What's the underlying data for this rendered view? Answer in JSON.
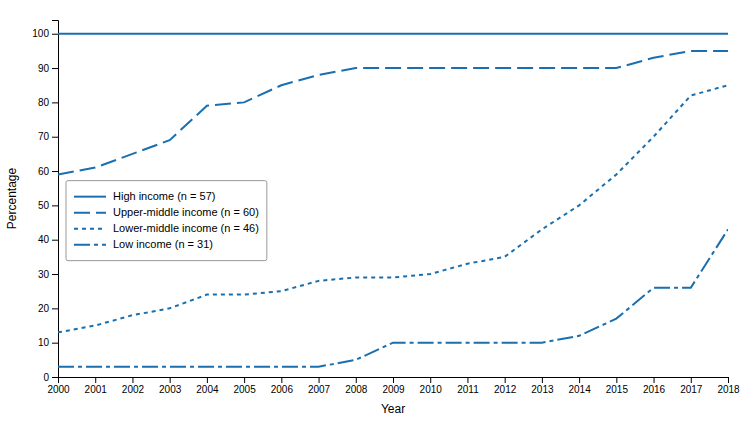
{
  "chart_data": {
    "type": "line",
    "xlabel": "Year",
    "ylabel": "Percentage",
    "x": [
      2000,
      2001,
      2002,
      2003,
      2004,
      2005,
      2006,
      2007,
      2008,
      2009,
      2010,
      2011,
      2012,
      2013,
      2014,
      2015,
      2016,
      2017,
      2018
    ],
    "series": [
      {
        "name": "High income (n = 57)",
        "color": "#1a6faf",
        "line_style": "solid",
        "values": [
          100,
          100,
          100,
          100,
          100,
          100,
          100,
          100,
          100,
          100,
          100,
          100,
          100,
          100,
          100,
          100,
          100,
          100,
          100
        ]
      },
      {
        "name": "Upper-middle income (n = 60)",
        "color": "#1a6faf",
        "line_style": "dashed",
        "values": [
          59,
          61,
          65,
          69,
          79,
          80,
          85,
          88,
          90,
          90,
          90,
          90,
          90,
          90,
          90,
          90,
          93,
          95,
          95
        ]
      },
      {
        "name": "Lower-middle income (n = 46)",
        "color": "#1a6faf",
        "line_style": "dotted",
        "values": [
          13,
          15,
          18,
          20,
          24,
          24,
          25,
          28,
          29,
          29,
          30,
          33,
          35,
          43,
          50,
          59,
          70,
          82,
          85
        ]
      },
      {
        "name": "Low income (n = 31)",
        "color": "#1a6faf",
        "line_style": "dashdot",
        "values": [
          3,
          3,
          3,
          3,
          3,
          3,
          3,
          3,
          5,
          10,
          10,
          10,
          10,
          10,
          12,
          17,
          26,
          26,
          43
        ]
      }
    ],
    "xlim": [
      2000,
      2018
    ],
    "xticks": [
      2000,
      2001,
      2002,
      2003,
      2004,
      2005,
      2006,
      2007,
      2008,
      2009,
      2010,
      2011,
      2012,
      2013,
      2014,
      2015,
      2016,
      2017,
      2018
    ],
    "ylim": [
      0,
      104
    ],
    "yticks": [
      0,
      10,
      20,
      30,
      40,
      50,
      60,
      70,
      80,
      90,
      100
    ],
    "grid": false,
    "legend": "center left"
  }
}
